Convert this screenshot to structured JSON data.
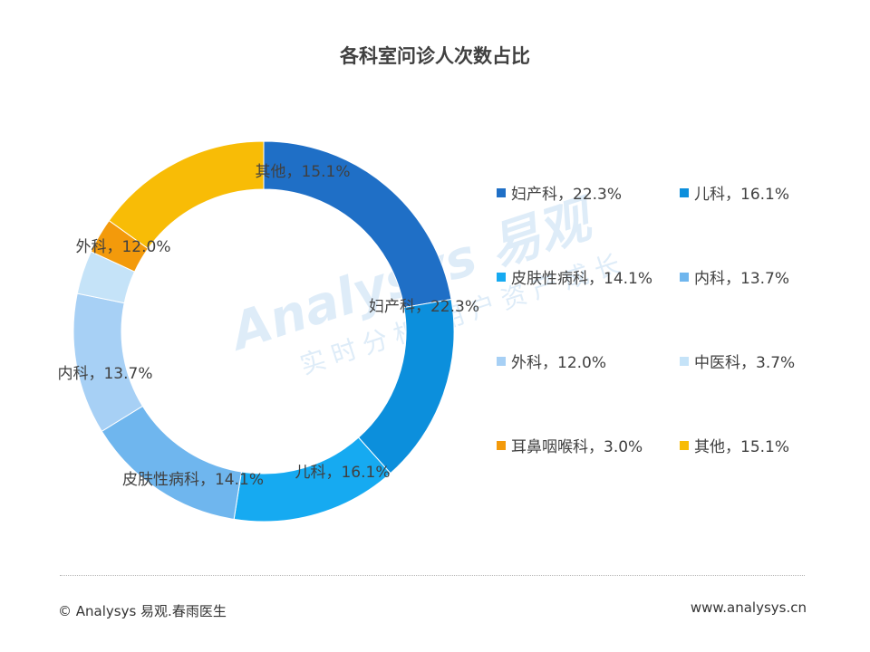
{
  "chart_data": {
    "type": "pie",
    "title": "各科室问诊人次数占比",
    "donut": true,
    "legend_placement": "right",
    "slices": [
      {
        "label": "妇产科",
        "value": 22.3,
        "display": "22.3%",
        "color": "#1f6fc6"
      },
      {
        "label": "儿科",
        "value": 16.1,
        "display": "16.1%",
        "color": "#0c8fdc"
      },
      {
        "label": "皮肤性病科",
        "value": 14.1,
        "display": "14.1%",
        "color": "#16aaf1"
      },
      {
        "label": "内科",
        "value": 13.7,
        "display": "13.7%",
        "color": "#6fb6ee"
      },
      {
        "label": "外科",
        "value": 12.0,
        "display": "12.0%",
        "color": "#a7d0f5"
      },
      {
        "label": "中医科",
        "value": 3.7,
        "display": "3.7%",
        "color": "#c5e3f8"
      },
      {
        "label": "耳鼻咽喉科",
        "value": 3.0,
        "display": "3.0%",
        "color": "#f39a0b"
      },
      {
        "label": "其他",
        "value": 15.1,
        "display": "15.1%",
        "color": "#f8bc06"
      }
    ]
  },
  "separator": "，",
  "watermark": {
    "brand": "Analysys 易观",
    "slogan": "实时分析 用户资产成长"
  },
  "footer": {
    "left": "© Analysys 易观.春雨医生",
    "right": "www.analysys.cn"
  }
}
